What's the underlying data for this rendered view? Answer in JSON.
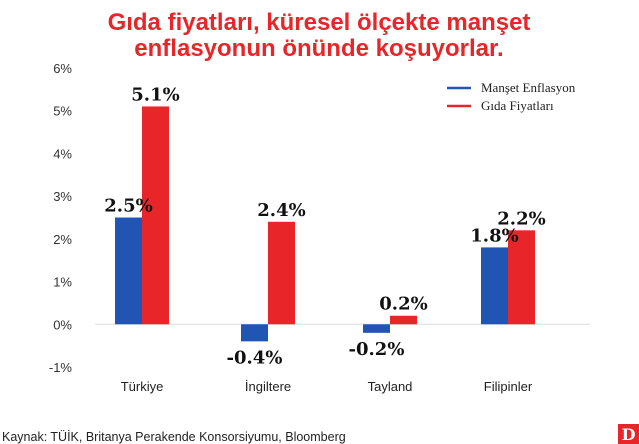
{
  "chart_data": {
    "type": "bar",
    "title_lines": [
      "Gıda fiyatları, küresel ölçekte manşet",
      "enflasyonun önünde koşuyorlar."
    ],
    "categories": [
      "Türkiye",
      "İngiltere",
      "Tayland",
      "Filipinler"
    ],
    "series": [
      {
        "name": "Manşet Enflasyon",
        "color": "#2155b4",
        "values": [
          2.5,
          -0.4,
          -0.2,
          1.8
        ],
        "labels": [
          "2.5%",
          "-0.4%",
          "-0.2%",
          "1.8%"
        ]
      },
      {
        "name": "Gıda Fiyatları",
        "color": "#e8262a",
        "values": [
          5.1,
          2.4,
          0.2,
          2.2
        ],
        "labels": [
          "5.1%",
          "2.4%",
          "0.2%",
          "2.2%"
        ]
      }
    ],
    "yticks": [
      "6%",
      "5%",
      "4%",
      "3%",
      "2%",
      "1%",
      "0%",
      "-1%"
    ],
    "ylim": [
      -1,
      6
    ],
    "legend_position": "top-right",
    "grid": false
  },
  "source": "Kaynak: TÜİK, Britanya Perakende Konsorsiyumu, Bloomberg",
  "logo": {
    "letter": "D",
    "color": "#e8262a"
  }
}
